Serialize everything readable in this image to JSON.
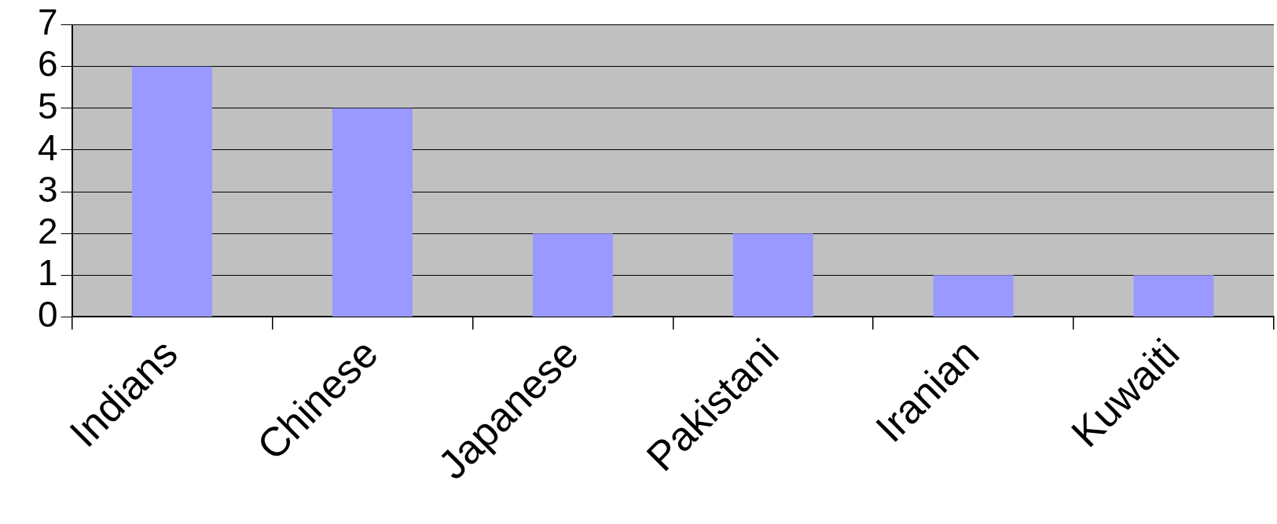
{
  "chart_data": {
    "type": "bar",
    "categories": [
      "Indians",
      "Chinese",
      "Japanese",
      "Pakistani",
      "Iranian",
      "Kuwaiti"
    ],
    "values": [
      6,
      5,
      2,
      2,
      1,
      1
    ],
    "color": "#9999ff",
    "ylim": [
      0,
      7
    ],
    "yticks": [
      0,
      1,
      2,
      3,
      4,
      5,
      6,
      7
    ],
    "grid": "y",
    "legend": false
  }
}
